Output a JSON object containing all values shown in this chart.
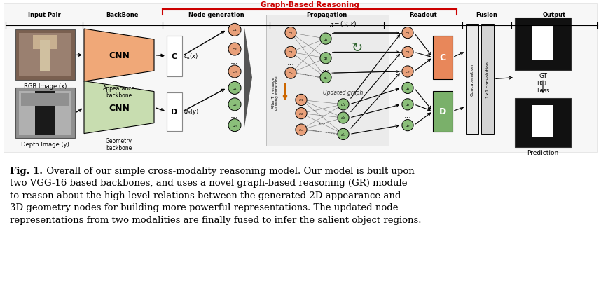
{
  "figure_width": 8.58,
  "figure_height": 4.02,
  "background_color": "#ffffff",
  "top_label": "Graph-Based Reasoning",
  "top_label_color": "#cc0000",
  "section_labels": [
    "Input Pair",
    "BackBone",
    "Node generation",
    "Propagation",
    "Readout",
    "Fusion",
    "Output"
  ],
  "orange_color": "#E8A07A",
  "green_color": "#8BBF7A",
  "cnn_orange_color": "#F0A878",
  "cnn_green_color": "#C8DDB0",
  "node_c_color": "#E8A07A",
  "node_d_color": "#90B878",
  "orange_block_color": "#E8875A",
  "green_block_color": "#7AB06A",
  "concat_bg": "#EFEFEF",
  "prop_bg": "#EBEBEB",
  "section_bg": "#F0F0F0",
  "caption_bold": "Fig. 1.",
  "caption_text": " Overall of our simple cross-modality reasoning model. Our model is built upon two VGG-16 based backbones, and uses a novel graph-based reasoning (GR) module to reason about the high-level relations between the generated 2D appearance and 3D geometry nodes for building more powerful representations. The updated node representations from two modalities are finally fused to infer the salient object regions.",
  "rgb_label": "RGB Image (x)",
  "depth_label": "Depth Image (y)",
  "appear_label": "Appearance\nbackbone",
  "geom_label": "Geometry\nbackbone",
  "gt_label": "GT",
  "bce_label": "BCE\nLoss",
  "pred_label": "Prediction"
}
